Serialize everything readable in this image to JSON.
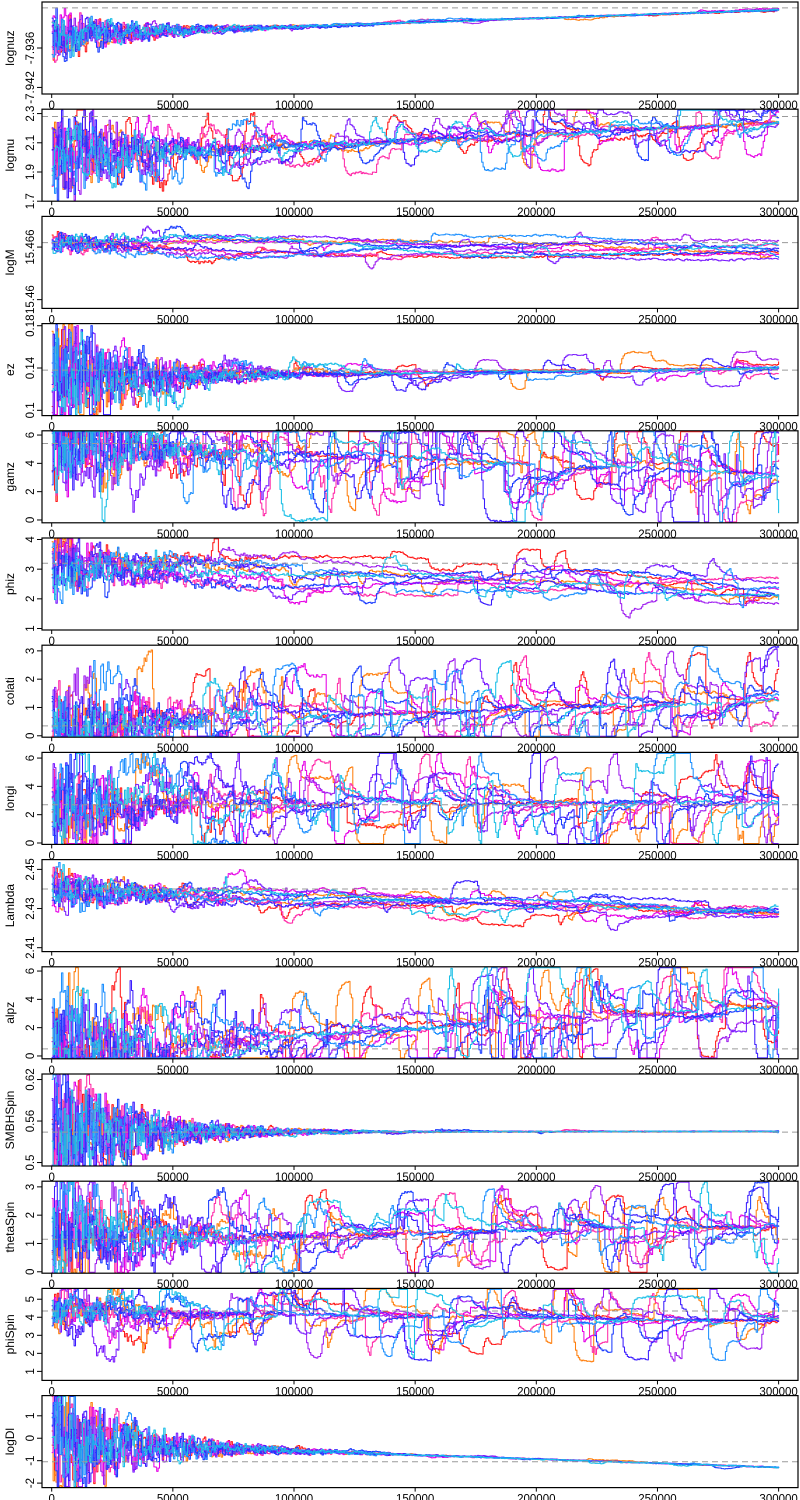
{
  "chart_data": [
    {
      "type": "line",
      "ylabel": "lognuz",
      "ylim": [
        -7.943,
        -7.929
      ],
      "yticks": [
        -7.936,
        -7.942
      ],
      "ref": -7.9299,
      "start": -7.934,
      "end": -7.9302,
      "burnin": 0.5,
      "noise": 0.35,
      "jump": 0.05,
      "drift": [
        0,
        0,
        0,
        0,
        0,
        0,
        0,
        0,
        0,
        0
      ]
    },
    {
      "type": "line",
      "ylabel": "logmu",
      "ylim": [
        1.7,
        2.33
      ],
      "yticks": [
        1.7,
        1.9,
        2.1,
        2.3
      ],
      "ref": 2.28,
      "start": 2.0,
      "end": 2.24,
      "burnin": 0.9,
      "noise": 0.9,
      "jump": 0.6,
      "drift": [
        0,
        0,
        0,
        0,
        0,
        0,
        0,
        0,
        0,
        0
      ]
    },
    {
      "type": "line",
      "ylabel": "logM",
      "ylim": [
        15.459,
        15.4695
      ],
      "yticks": [
        15.46,
        15.466
      ],
      "ref": 15.4665,
      "start": 15.4665,
      "end": 15.4655,
      "burnin": 0.2,
      "noise": 0.55,
      "jump": 0.2,
      "drift": [
        -0.3,
        0.2,
        -0.25,
        0.1,
        -0.35,
        0.3,
        -0.2,
        0.15,
        -0.4,
        0.25
      ]
    },
    {
      "type": "line",
      "ylabel": "ez",
      "ylim": [
        0.095,
        0.182
      ],
      "yticks": [
        0.1,
        0.14,
        0.18
      ],
      "ref": 0.138,
      "start": 0.13,
      "end": 0.14,
      "burnin": 1.2,
      "noise": 0.4,
      "jump": 0.3,
      "drift": [
        0.05,
        0.02,
        -0.02,
        0.03,
        0,
        0.04,
        -0.01,
        0.02,
        0.05,
        0
      ]
    },
    {
      "type": "line",
      "ylabel": "gamz",
      "ylim": [
        -0.2,
        6.3
      ],
      "yticks": [
        0,
        2,
        4,
        6
      ],
      "ref": 5.4,
      "start": 5.4,
      "end": 3.2,
      "burnin": 1.0,
      "noise": 0.8,
      "jump": 1.0,
      "drift": [
        0,
        0,
        0,
        0,
        0,
        0,
        0,
        0,
        0,
        0
      ]
    },
    {
      "type": "line",
      "ylabel": "phiz",
      "ylim": [
        0.95,
        4.05
      ],
      "yticks": [
        1.0,
        2.0,
        3.0,
        4.0
      ],
      "ref": 3.2,
      "start": 3.2,
      "end": 2.2,
      "burnin": 0.6,
      "noise": 0.6,
      "jump": 0.35,
      "drift": [
        0.6,
        0.1,
        -0.6,
        -0.2,
        0.4,
        -0.4,
        0.2,
        -0.5,
        0.3,
        -0.1
      ]
    },
    {
      "type": "line",
      "ylabel": "colati",
      "ylim": [
        -0.05,
        3.2
      ],
      "yticks": [
        0.0,
        1.0,
        2.0,
        3.0
      ],
      "ref": 0.35,
      "start": 0.35,
      "end": 1.3,
      "burnin": 0.8,
      "noise": 0.8,
      "jump": 0.9,
      "drift": [
        0,
        0,
        0,
        0,
        0,
        0,
        0,
        0,
        0,
        0
      ]
    },
    {
      "type": "line",
      "ylabel": "longi",
      "ylim": [
        -0.1,
        6.4
      ],
      "yticks": [
        0,
        2,
        4,
        6
      ],
      "ref": 2.7,
      "start": 2.6,
      "end": 3.0,
      "burnin": 0.9,
      "noise": 0.8,
      "jump": 0.9,
      "drift": [
        0,
        0,
        0,
        0,
        0,
        0,
        0,
        0,
        0,
        0
      ]
    },
    {
      "type": "line",
      "ylabel": "Lambda",
      "ylim": [
        2.408,
        2.455
      ],
      "yticks": [
        2.41,
        2.43,
        2.45
      ],
      "ref": 2.44,
      "start": 2.44,
      "end": 2.428,
      "burnin": 0.4,
      "noise": 0.6,
      "jump": 0.3,
      "drift": [
        -0.2,
        0.1,
        -0.25,
        0.15,
        -0.1,
        0.2,
        -0.3,
        0.05,
        -0.15,
        0.1
      ]
    },
    {
      "type": "line",
      "ylabel": "alpz",
      "ylim": [
        -0.2,
        6.3
      ],
      "yticks": [
        0,
        2,
        4,
        6
      ],
      "ref": 0.5,
      "start": 0.5,
      "end": 3.4,
      "burnin": 1.0,
      "noise": 0.8,
      "jump": 1.0,
      "drift": [
        0,
        0,
        0,
        0,
        0,
        0,
        0,
        0,
        0,
        0
      ]
    },
    {
      "type": "line",
      "ylabel": "SMBHSpin",
      "ylim": [
        0.495,
        0.628
      ],
      "yticks": [
        0.5,
        0.56,
        0.62
      ],
      "ref": 0.544,
      "start": 0.544,
      "end": 0.545,
      "burnin": 1.3,
      "noise": 0.25,
      "jump": 0.05,
      "drift": [
        0,
        0,
        0,
        0,
        0,
        0,
        0,
        0,
        0,
        0
      ]
    },
    {
      "type": "line",
      "ylabel": "thetaSpin",
      "ylim": [
        -0.05,
        3.2
      ],
      "yticks": [
        0.0,
        1.0,
        2.0,
        3.0
      ],
      "ref": 1.15,
      "start": 1.15,
      "end": 1.6,
      "burnin": 1.0,
      "noise": 0.8,
      "jump": 0.8,
      "drift": [
        0,
        0,
        0,
        0,
        0,
        0,
        0,
        0,
        0,
        0
      ]
    },
    {
      "type": "line",
      "ylabel": "phiSpin",
      "ylim": [
        0.5,
        5.6
      ],
      "yticks": [
        1,
        2,
        3,
        4,
        5
      ],
      "ref": 4.35,
      "start": 4.3,
      "end": 3.8,
      "burnin": 0.4,
      "noise": 0.6,
      "jump": 0.7,
      "drift": [
        0,
        0,
        0,
        0,
        0,
        0,
        0,
        0,
        0,
        0
      ]
    },
    {
      "type": "line",
      "ylabel": "logDl",
      "ylim": [
        -2.2,
        1.9
      ],
      "yticks": [
        -2,
        -1,
        0,
        1
      ],
      "ref": -1.05,
      "start": -0.2,
      "end": -1.3,
      "burnin": 1.2,
      "noise": 0.25,
      "jump": 0.05,
      "drift": [
        0,
        0,
        0,
        0,
        0,
        0,
        0,
        0,
        0,
        0
      ]
    }
  ],
  "x_axis": {
    "min": 0,
    "max": 300000,
    "ticks": [
      0,
      50000,
      100000,
      150000,
      200000,
      250000,
      300000
    ]
  },
  "series_colors": [
    "#ff1a1a",
    "#ff7f0e",
    "#ff2aa8",
    "#e600e6",
    "#a020f0",
    "#7a1cff",
    "#3b1cff",
    "#1a3cff",
    "#1e90ff",
    "#19bfe6"
  ],
  "reference_line_color": "#9a9a9a"
}
